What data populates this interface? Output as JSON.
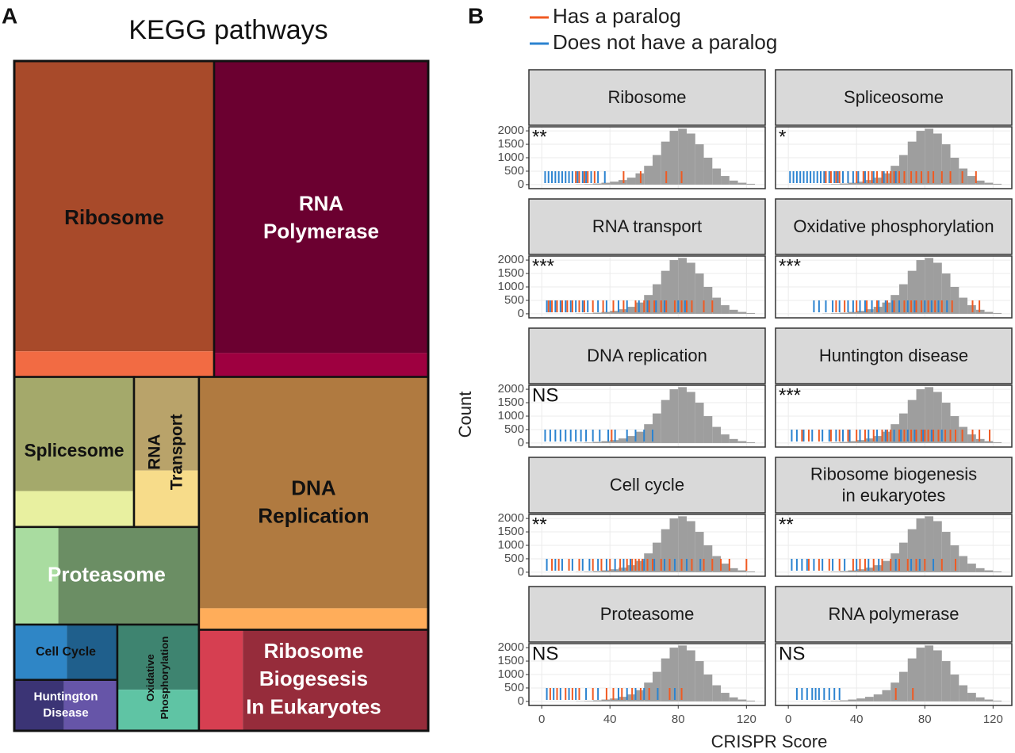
{
  "chart_data": [
    {
      "type": "treemap",
      "panel": "A",
      "title": "KEGG pathways",
      "nodes": [
        {
          "label": [
            "Ribosome"
          ],
          "values": [
            91.7,
            8.1
          ],
          "colors": [
            "#a84a2a",
            "#f26b43"
          ],
          "label_color": "#111111",
          "rotated": false
        },
        {
          "label": [
            "RNA",
            "Polymerase"
          ],
          "values": [
            98.8,
            8.1
          ],
          "colors": [
            "#6b0030",
            "#9e0040"
          ],
          "label_color": "#ffffff",
          "rotated": false
        },
        {
          "label": [
            "Splicesome"
          ],
          "values": [
            21.6,
            6.8
          ],
          "colors": [
            "#a4a96b",
            "#e8f0a0"
          ],
          "label_color": "#111111",
          "rotated": false
        },
        {
          "label": [
            "RNA",
            "Transport"
          ],
          "values": [
            9.6,
            5.8
          ],
          "colors": [
            "#b9a36a",
            "#f7dc8a"
          ],
          "label_color": "#111111",
          "rotated": true
        },
        {
          "label": [
            "Proteasome"
          ],
          "values": [
            21.7,
            6.8
          ],
          "colors": [
            "#6b8e64",
            "#a9dca0"
          ],
          "label_color": "#ffffff",
          "rotated": false
        },
        {
          "label": [
            "Cell Cycle"
          ],
          "values": [
            4.4,
            4.6
          ],
          "colors": [
            "#1f5f8c",
            "#2f86c6"
          ],
          "label_color": "#111111",
          "rotated": false
        },
        {
          "label": [
            "Huntington",
            "Disease"
          ],
          "values": [
            4.3,
            4.0
          ],
          "colors": [
            "#6655a8",
            "#3b3475"
          ],
          "label_color": "#ffffff",
          "rotated": false
        },
        {
          "label": [
            "Oxidative",
            "Phosphorylation"
          ],
          "values": [
            8.4,
            5.3
          ],
          "colors": [
            "#3e8470",
            "#5fc4a4"
          ],
          "label_color": "#111111",
          "rotated": true
        },
        {
          "label": [
            "DNA",
            "Replication"
          ],
          "values": [
            83.8,
            7.8
          ],
          "colors": [
            "#b07a40",
            "#ffad5a"
          ],
          "label_color": "#111111",
          "rotated": false
        },
        {
          "label": [
            "Ribosome",
            "Biogesesis",
            "In Eukaryotes"
          ],
          "values": [
            29.6,
            7.0
          ],
          "colors": [
            "#962c3b",
            "#d63f51"
          ],
          "label_color": "#ffffff",
          "rotated": false
        }
      ]
    },
    {
      "type": "facets",
      "panel": "B",
      "xlabel": "CRISPR Score",
      "ylabel": "Count",
      "series": [
        {
          "name": "Has a paralog",
          "color": "#f05a22"
        },
        {
          "name": "Does not have a paralog",
          "color": "#2b83d0"
        }
      ],
      "color": "#9e9e9e",
      "grid": true,
      "xlim": [
        -7.5,
        131
      ],
      "xticks": [
        0,
        40,
        80,
        120
      ],
      "ylim": [
        -150,
        2150
      ],
      "yticks": [
        0,
        500,
        1000,
        1500,
        2000
      ],
      "bins": [
        20,
        25,
        30,
        35,
        40,
        45,
        50,
        55,
        60,
        65,
        70,
        75,
        80,
        85,
        90,
        95,
        100,
        105,
        110,
        115,
        120,
        125
      ],
      "counts": [
        10,
        20,
        40,
        70,
        110,
        170,
        260,
        420,
        700,
        1100,
        1600,
        2000,
        2080,
        1900,
        1500,
        1000,
        600,
        320,
        150,
        70,
        30
      ],
      "facets": [
        {
          "title": [
            "Ribosome"
          ],
          "annotation": "**",
          "series": [
            {
              "values": [
                20,
                22,
                25,
                27,
                31,
                48,
                58,
                73,
                82
              ]
            },
            {
              "values": [
                2,
                4,
                6,
                8,
                10,
                12,
                14,
                16,
                18,
                21,
                24,
                26,
                29,
                33,
                37
              ]
            }
          ]
        },
        {
          "title": [
            "Spliceosome"
          ],
          "annotation": "*",
          "series": [
            {
              "values": [
                22,
                25,
                28,
                30,
                35,
                40,
                44,
                47,
                49,
                52,
                55,
                58,
                60,
                62,
                65,
                68,
                72,
                75,
                78,
                82,
                85,
                90,
                95,
                102,
                110
              ]
            },
            {
              "values": [
                1,
                3,
                5,
                7,
                9,
                11,
                13,
                15,
                17,
                19,
                21,
                24,
                27,
                29,
                32,
                35,
                38,
                41,
                45,
                50,
                56,
                63
              ]
            }
          ]
        },
        {
          "title": [
            "RNA transport"
          ],
          "annotation": "***",
          "series": [
            {
              "values": [
                4,
                6,
                9,
                12,
                15,
                18,
                22,
                25,
                30,
                36,
                42,
                48,
                55,
                60,
                63,
                66,
                70,
                73,
                78,
                82,
                85,
                88,
                95,
                100
              ]
            },
            {
              "values": [
                3,
                5,
                8,
                11,
                14,
                17,
                20,
                24,
                27,
                33,
                38,
                45,
                50,
                57,
                62,
                67,
                72,
                80,
                84
              ]
            }
          ]
        },
        {
          "title": [
            "Oxidative phosphorylation"
          ],
          "annotation": "***",
          "series": [
            {
              "values": [
                28,
                33,
                40,
                46,
                52,
                58,
                62,
                68,
                72,
                75,
                78,
                82,
                86,
                90,
                96,
                108,
                112
              ]
            },
            {
              "values": [
                15,
                18,
                22,
                26,
                30,
                35,
                38,
                42,
                45,
                49,
                53,
                57,
                61,
                65,
                70,
                74,
                80,
                84,
                88,
                93
              ]
            }
          ]
        },
        {
          "title": [
            "DNA replication"
          ],
          "annotation": "NS",
          "series": [
            {
              "values": [
                41
              ]
            },
            {
              "values": [
                2,
                5,
                8,
                11,
                14,
                17,
                20,
                23,
                26,
                30,
                34,
                39,
                43,
                50,
                55,
                60,
                65
              ]
            }
          ]
        },
        {
          "title": [
            "Huntington disease"
          ],
          "annotation": "***",
          "series": [
            {
              "values": [
                8,
                12,
                18,
                25,
                30,
                35,
                40,
                45,
                50,
                55,
                58,
                60,
                62,
                65,
                68,
                70,
                72,
                75,
                78,
                80,
                82,
                85,
                88,
                92,
                95,
                98,
                102,
                108,
                112,
                118
              ]
            },
            {
              "values": [
                2,
                5,
                9,
                14,
                20,
                24,
                28,
                32,
                36,
                42,
                47,
                52,
                57,
                62,
                66,
                70,
                74,
                79,
                84,
                90
              ]
            }
          ]
        },
        {
          "title": [
            "Cell cycle"
          ],
          "annotation": "**",
          "series": [
            {
              "values": [
                6,
                10,
                16,
                22,
                30,
                35,
                40,
                46,
                50,
                53,
                55,
                57,
                59,
                62,
                65,
                70,
                75,
                82,
                88,
                95,
                100,
                105,
                110,
                120
              ]
            },
            {
              "values": [
                3,
                8,
                12,
                18,
                24,
                28,
                33,
                38,
                43,
                48,
                52,
                60,
                66,
                72,
                78,
                85,
                93
              ]
            }
          ]
        },
        {
          "title": [
            "Ribosome biogenesis",
            "in eukaryotes"
          ],
          "annotation": "**",
          "series": [
            {
              "values": [
                12,
                18,
                24,
                30,
                38,
                42,
                45,
                50,
                55,
                60,
                65,
                70,
                75,
                80,
                90,
                98
              ]
            },
            {
              "values": [
                2,
                5,
                8,
                11,
                15,
                20,
                26,
                33,
                40,
                47,
                53,
                63,
                72,
                77,
                85
              ]
            }
          ]
        },
        {
          "title": [
            "Proteasome"
          ],
          "annotation": "NS",
          "series": [
            {
              "values": [
                5,
                9,
                14,
                18,
                22,
                30,
                38,
                42,
                47,
                53,
                58,
                63,
                75,
                82
              ]
            },
            {
              "values": [
                3,
                7,
                11,
                16,
                20,
                26,
                33,
                45,
                50,
                55,
                60,
                68,
                78
              ]
            }
          ]
        },
        {
          "title": [
            "RNA polymerase"
          ],
          "annotation": "NS",
          "series": [
            {
              "values": [
                63,
                73
              ]
            },
            {
              "values": [
                5,
                8,
                11,
                14,
                16,
                18,
                21,
                24,
                27,
                30
              ]
            }
          ]
        }
      ]
    }
  ]
}
